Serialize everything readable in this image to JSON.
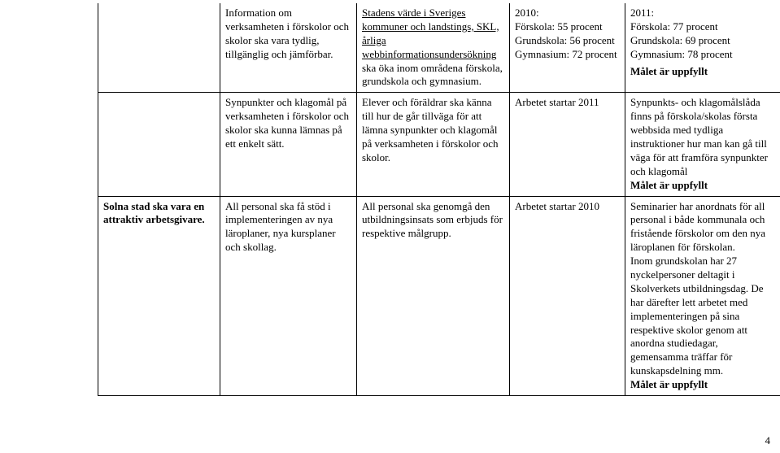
{
  "row1": {
    "c1": "",
    "c2": "Information om verksamheten i förskolor och skolor ska vara tydlig, tillgänglig och jämförbar.",
    "c3_underlined": "Stadens värde i Sveriges kommuner och landstings, SKL, årliga webbinformationsundersökning",
    "c3_rest": " ska öka inom områdena förskola, grundskola och gymnasium.",
    "c4_title": "2010:",
    "c4_l1": "Förskola: 55 procent",
    "c4_l2": "Grundskola: 56 procent",
    "c4_l3": "Gymnasium: 72 procent",
    "c5_title": "2011:",
    "c5_l1": "Förskola: 77 procent",
    "c5_l2": "Grundskola: 69 procent",
    "c5_l3": "Gymnasium: 78 procent",
    "c5_status": "Målet är uppfyllt"
  },
  "row2": {
    "c1": "",
    "c2": "Synpunkter och klagomål på verksamheten i förskolor och skolor ska kunna lämnas på ett enkelt sätt.",
    "c3": "Elever och föräldrar ska känna till hur de går tillväga för att lämna synpunkter och klagomål på verksamheten i förskolor och skolor.",
    "c4": "Arbetet startar 2011",
    "c5_text": "Synpunkts- och klagomålslåda finns på förskola/skolas första webbsida med tydliga instruktioner hur man kan gå till väga för att framföra synpunkter och klagomål",
    "c5_status": "Målet är uppfyllt"
  },
  "row3": {
    "c1": "Solna stad ska vara en attraktiv arbetsgivare.",
    "c2": "All personal ska få stöd i implementeringen av nya läroplaner, nya kursplaner och skollag.",
    "c3": "All personal ska genomgå den utbildningsinsats som erbjuds för respektive målgrupp.",
    "c4": "Arbetet startar 2010",
    "c5_text": "Seminarier har anordnats för all personal i både kommunala och fristående förskolor om den nya läroplanen för förskolan.\nInom grundskolan har 27 nyckelpersoner deltagit i Skolverkets utbildningsdag. De har därefter lett arbetet med implementeringen på sina respektive skolor genom att anordna studiedagar, gemensamma träffar för kunskapsdelning mm.",
    "c5_status": "Målet är uppfyllt"
  },
  "page_number": "4"
}
